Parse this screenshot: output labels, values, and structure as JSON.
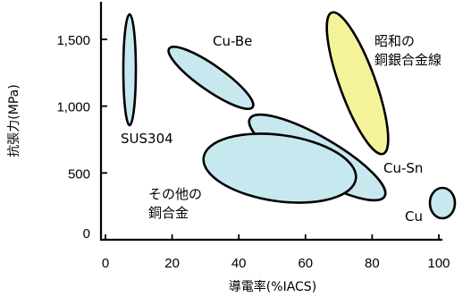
{
  "chart_data": {
    "type": "scatter",
    "title": "",
    "xlabel": "導電率(%IACS)",
    "ylabel": "抗張力(MPa)",
    "xlim": [
      0,
      100
    ],
    "ylim": [
      0,
      1700
    ],
    "x_ticks": [
      0,
      20,
      40,
      60,
      80,
      100
    ],
    "x_tick_labels": [
      "0",
      "20",
      "40",
      "60",
      "80",
      "100"
    ],
    "y_ticks": [
      0,
      500,
      1000,
      1500
    ],
    "y_tick_labels": [
      "0",
      "500",
      "1,000",
      "1,500"
    ],
    "grid": false,
    "legend": "none",
    "series": [
      {
        "label_lines": [
          "SUS304"
        ],
        "x_range": [
          6,
          9
        ],
        "y_range": [
          860,
          1750
        ],
        "color": "#c8e8ef"
      },
      {
        "label_lines": [
          "Cu-Be"
        ],
        "x_range": [
          20,
          46
        ],
        "y_range": [
          1050,
          1480
        ],
        "color": "#c8e8ef"
      },
      {
        "label_lines": [
          "昭和の",
          "銅銀合金線"
        ],
        "x_range": [
          64,
          87
        ],
        "y_range": [
          670,
          1780
        ],
        "color": "#f5f39a"
      },
      {
        "label_lines": [
          "Cu-Sn"
        ],
        "x_range": [
          43,
          86
        ],
        "y_range": [
          330,
          920
        ],
        "color": "#c8e8ef"
      },
      {
        "label_lines": [
          "その他の",
          "銅合金"
        ],
        "x_range": [
          30,
          76
        ],
        "y_range": [
          290,
          780
        ],
        "color": "#c8e8ef"
      },
      {
        "label_lines": [
          "Cu"
        ],
        "x_range": [
          95,
          104
        ],
        "y_range": [
          155,
          410
        ],
        "color": "#c8e8ef"
      }
    ]
  }
}
